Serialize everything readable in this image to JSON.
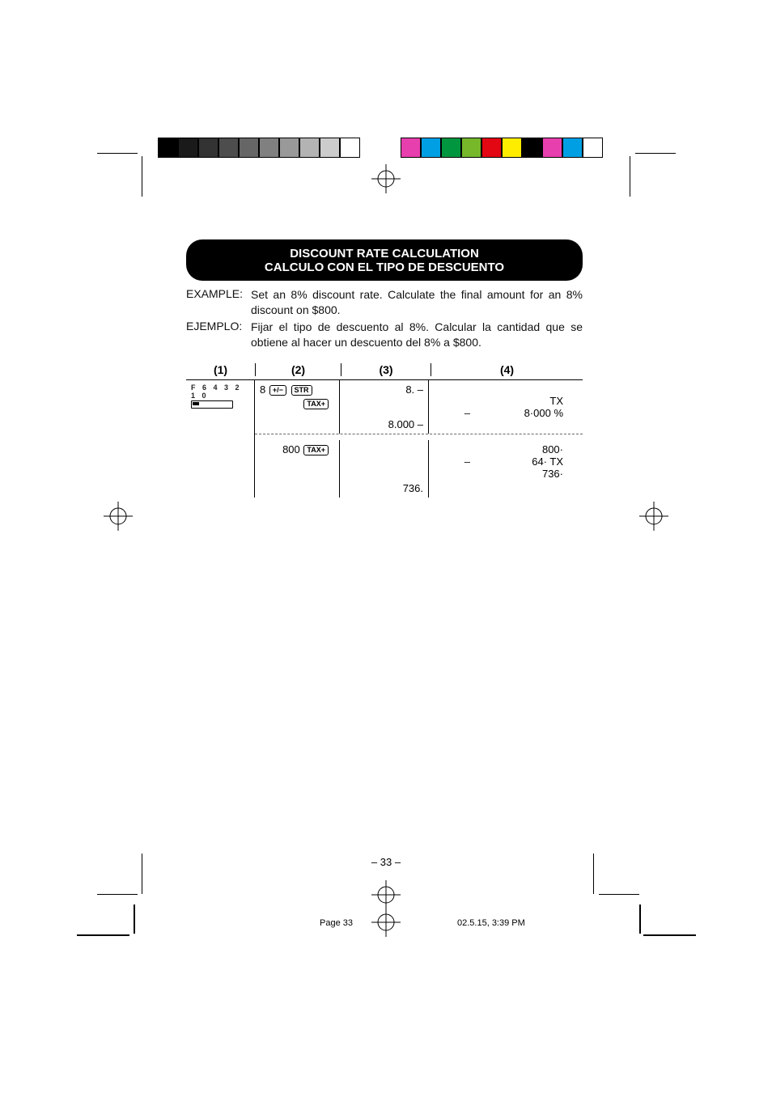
{
  "crop_color": "#000000",
  "colorbars": {
    "left": [
      "#000000",
      "#1a1a1a",
      "#333333",
      "#4d4d4d",
      "#666666",
      "#808080",
      "#999999",
      "#b3b3b3",
      "#cccccc",
      "#ffffff"
    ],
    "right": [
      "#e83fae",
      "#009fe3",
      "#009640",
      "#76b82a",
      "#e30613",
      "#ffed00",
      "#000000",
      "#e83fae",
      "#009fe3",
      "#ffffff"
    ]
  },
  "title": {
    "line1": "DISCOUNT RATE CALCULATION",
    "line2": "CALCULO CON EL TIPO DE DESCUENTO"
  },
  "examples": [
    {
      "label": "EXAMPLE:",
      "text": "Set an 8% discount rate. Calculate the final amount for an 8% discount on $800."
    },
    {
      "label": "EJEMPLO:",
      "text": "Fijar el tipo de descuento al 8%. Calcular la cantidad que se obtiene al hacer un descuento del 8% a $800."
    }
  ],
  "table": {
    "headers": [
      "(1)",
      "(2)",
      "(3)",
      "(4)"
    ],
    "selector_label": "F 6 4 3 2 1 0",
    "rows_top": {
      "col2": {
        "digit": "8",
        "keys": [
          "+/−",
          "STR",
          "TAX+"
        ]
      },
      "col3": [
        "8. –",
        "8.000 –"
      ],
      "col4": [
        {
          "sign": "",
          "val": "TX"
        },
        {
          "sign": "–",
          "val": "8·000 %"
        }
      ]
    },
    "rows_bot": {
      "col2": {
        "digit": "800",
        "keys": [
          "TAX+"
        ]
      },
      "col3": [
        "736."
      ],
      "col4": [
        {
          "sign": "",
          "val": "800·"
        },
        {
          "sign": "–",
          "val": "64· TX"
        },
        {
          "sign": "",
          "val": "736·"
        }
      ]
    }
  },
  "pagenum": "– 33 –",
  "footer": {
    "a": "Page 33",
    "b": "02.5.15, 3:39 PM"
  }
}
